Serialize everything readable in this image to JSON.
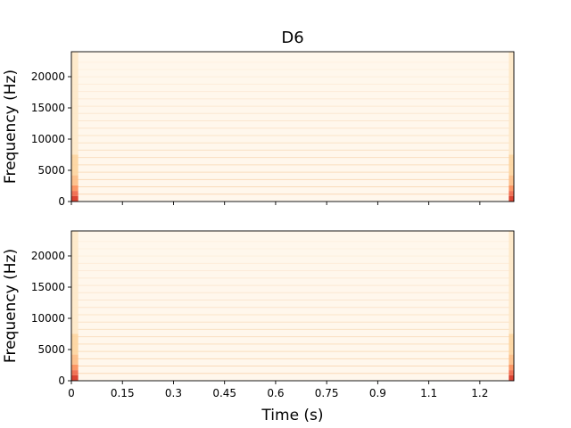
{
  "chart_data": [
    {
      "type": "heatmap",
      "title": "D6",
      "xlabel": "",
      "ylabel": "Frequency (Hz)",
      "xlim": [
        0,
        1.3
      ],
      "ylim": [
        0,
        24000
      ],
      "xticks": [
        0,
        0.15,
        0.3,
        0.45,
        0.6,
        0.75,
        0.9,
        1.05,
        1.2
      ],
      "xtick_labels": [],
      "yticks": [
        0,
        5000,
        10000,
        15000,
        20000
      ],
      "ytick_labels": [
        "0",
        "5000",
        "10000",
        "15000",
        "20000"
      ],
      "colormap": "OrRd",
      "background_color": "#fff7ec",
      "harmonics_hz": [
        1175,
        2350,
        3525,
        4700,
        5875,
        7050,
        8225,
        9400,
        10575,
        11750,
        12925,
        14100,
        15275,
        16450,
        17625,
        18800,
        19975,
        21150,
        22325
      ],
      "onset_hot_time_s": [
        0,
        0.02
      ],
      "offset_hot_time_s": [
        1.285,
        1.3
      ]
    },
    {
      "type": "heatmap",
      "title": "",
      "xlabel": "Time (s)",
      "ylabel": "Frequency (Hz)",
      "xlim": [
        0,
        1.3
      ],
      "ylim": [
        0,
        24000
      ],
      "xticks": [
        0,
        0.15,
        0.3,
        0.45,
        0.6,
        0.75,
        0.9,
        1.05,
        1.2
      ],
      "xtick_labels": [
        "0",
        "0.15",
        "0.3",
        "0.45",
        "0.6",
        "0.75",
        "0.9",
        "1.1",
        "1.2"
      ],
      "yticks": [
        0,
        5000,
        10000,
        15000,
        20000
      ],
      "ytick_labels": [
        "0",
        "5000",
        "10000",
        "15000",
        "20000"
      ],
      "colormap": "OrRd",
      "background_color": "#fff7ec",
      "harmonics_hz": [
        1175,
        2350,
        3525,
        4700,
        5875,
        7050,
        8225,
        9400,
        10575,
        11750,
        12925,
        14100,
        15275,
        16450,
        17625,
        18800,
        19975,
        21150,
        22325
      ],
      "onset_hot_time_s": [
        0,
        0.02
      ],
      "offset_hot_time_s": [
        1.285,
        1.3
      ]
    }
  ]
}
